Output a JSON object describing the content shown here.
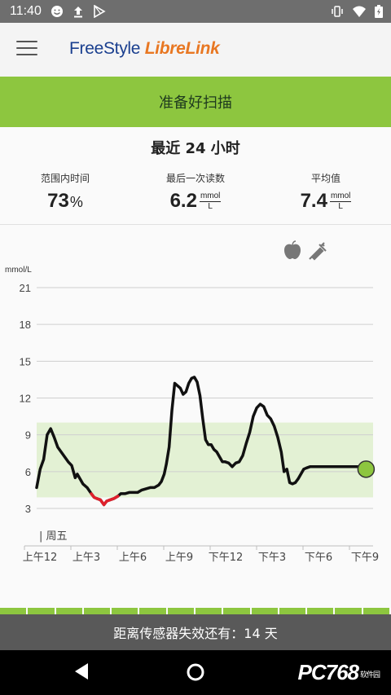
{
  "status_bar": {
    "time": "11:40",
    "left_icons": [
      "smiley-icon",
      "upload-icon",
      "play-store-icon"
    ],
    "right_icons": [
      "vibrate-icon",
      "wifi-icon",
      "battery-icon"
    ]
  },
  "app_bar": {
    "brand_part1": "FreeStyle ",
    "brand_part2": "LibreLink",
    "brand_colors": {
      "part1": "#1a3f8f",
      "part2": "#e87722"
    }
  },
  "scan_button": {
    "label": "准备好扫描",
    "color": "#8dc63f"
  },
  "summary": {
    "title": "最近 24 小时",
    "in_range": {
      "label": "范围内时间",
      "value": "73",
      "unit": "%"
    },
    "last_reading": {
      "label": "最后一次读数",
      "value": "6.2",
      "unit_top": "mmol",
      "unit_bottom": "L"
    },
    "average": {
      "label": "平均值",
      "value": "7.4",
      "unit_top": "mmol",
      "unit_bottom": "L"
    }
  },
  "chart_data": {
    "type": "line",
    "ylabel": "mmol/L",
    "yticks": [
      "21",
      "18",
      "15",
      "12",
      "9",
      "6",
      "3"
    ],
    "ylim": [
      3,
      21
    ],
    "target_range": [
      3.9,
      10
    ],
    "xticks": [
      "上午12",
      "上午3",
      "上午6",
      "上午9",
      "下午12",
      "下午3",
      "下午6",
      "下午9"
    ],
    "xlim": [
      0,
      24
    ],
    "day_marker": "| 周五",
    "event_icons": [
      "apple-icon",
      "syringe-icon"
    ],
    "colors": {
      "line": "#111111",
      "low": "#e0202c",
      "range_fill": "#e3f1d4",
      "current_dot": "#8dc63f"
    },
    "series": [
      {
        "x": [
          0,
          0.25,
          0.5,
          0.75,
          1.0,
          1.25,
          1.5,
          1.75,
          2.0,
          2.25,
          2.5,
          2.75,
          2.9,
          3.1,
          3.3,
          3.6,
          3.9,
          4.1,
          4.3,
          4.55,
          4.8,
          5.0,
          5.25,
          5.5,
          5.8,
          6.0,
          6.3,
          6.6,
          6.9,
          7.2,
          7.5,
          7.8,
          8.1,
          8.4,
          8.7,
          8.9,
          9.1,
          9.25,
          9.45,
          9.65,
          9.85,
          10.05,
          10.25,
          10.45,
          10.65,
          10.85,
          11.05,
          11.25,
          11.45,
          11.65,
          11.85,
          12.05,
          12.25,
          12.45,
          12.65,
          12.85,
          13.05,
          13.25,
          13.45,
          13.7,
          13.95,
          14.2,
          14.45,
          14.7,
          14.95,
          15.2,
          15.45,
          15.7,
          15.95,
          16.2,
          16.45,
          16.7,
          16.95,
          17.2,
          17.45,
          17.65,
          17.85,
          18.05,
          18.25,
          18.45,
          18.65,
          18.85,
          19.05,
          19.25,
          19.5,
          19.75,
          20.0,
          20.25,
          20.5,
          20.75,
          20.95,
          21.15,
          21.35,
          21.55,
          21.75,
          21.95,
          22.15,
          22.35,
          22.55,
          22.75,
          22.95,
          23.15
        ],
        "y": [
          4.7,
          6.2,
          7.0,
          9.0,
          9.5,
          8.8,
          8.0,
          7.6,
          7.2,
          6.8,
          6.5,
          5.5,
          5.8,
          5.4,
          5.0,
          4.7,
          4.2,
          3.9,
          3.8,
          3.7,
          3.3,
          3.6,
          3.7,
          3.8,
          4.0,
          4.2,
          4.2,
          4.3,
          4.3,
          4.3,
          4.5,
          4.6,
          4.7,
          4.7,
          4.9,
          5.2,
          5.8,
          6.6,
          8.0,
          11.0,
          13.2,
          13.0,
          12.8,
          12.3,
          12.5,
          13.2,
          13.6,
          13.7,
          13.3,
          12.2,
          10.3,
          8.6,
          8.2,
          8.2,
          7.8,
          7.6,
          7.2,
          6.8,
          6.8,
          6.7,
          6.4,
          6.7,
          6.8,
          7.3,
          8.3,
          9.2,
          10.5,
          11.2,
          11.5,
          11.3,
          10.6,
          10.3,
          9.7,
          8.8,
          7.6,
          6.0,
          6.2,
          5.1,
          5.0,
          5.1,
          5.4,
          5.8,
          6.2,
          6.3,
          6.4,
          6.4,
          6.4,
          6.4,
          6.4,
          6.4,
          6.4,
          6.4,
          6.4,
          6.4,
          6.4,
          6.4,
          6.4,
          6.4,
          6.4,
          6.4,
          6.4,
          6.4
        ],
        "low_segment_x": [
          3.9,
          4.1,
          4.3,
          4.55,
          4.8,
          5.0,
          5.25,
          5.5,
          5.8
        ]
      }
    ],
    "current_point": {
      "x": 23.5,
      "y": 6.2
    }
  },
  "timeline": {
    "segments": 14
  },
  "footer": {
    "text": "距离传感器失效还有：14 天"
  },
  "nav_bar": {
    "items": [
      "back-button",
      "home-button"
    ]
  },
  "watermark": {
    "text": "PC768",
    "sub": "软件园"
  }
}
